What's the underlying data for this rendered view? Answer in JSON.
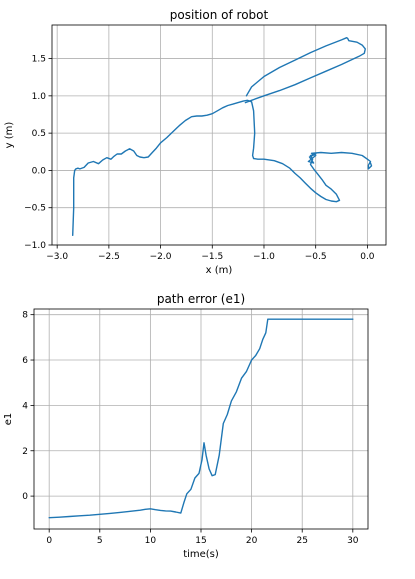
{
  "colors": {
    "series": "#1f77b4",
    "grid": "#b0b0b0",
    "background": "#ffffff"
  },
  "chart_data": [
    {
      "type": "line",
      "title": "position of robot",
      "xlabel": "x (m)",
      "ylabel": "y (m)",
      "xlim": [
        -3.05,
        0.18
      ],
      "ylim": [
        -1.0,
        1.95
      ],
      "xticks": [
        -3.0,
        -2.5,
        -2.0,
        -1.5,
        -1.0,
        -0.5,
        0.0
      ],
      "xtick_labels": [
        "−3.0",
        "−2.5",
        "−2.0",
        "−1.5",
        "−1.0",
        "−0.5",
        "0.0"
      ],
      "yticks": [
        -1.0,
        -0.5,
        0.0,
        0.5,
        1.0,
        1.5
      ],
      "ytick_labels": [
        "−1.0",
        "−0.5",
        "0.0",
        "0.5",
        "1.0",
        "1.5"
      ],
      "grid": true,
      "series": [
        {
          "x": [
            -2.85,
            -2.84,
            -2.84,
            -2.83,
            -2.82,
            -2.8,
            -2.78,
            -2.74,
            -2.7,
            -2.65,
            -2.6,
            -2.56,
            -2.52,
            -2.48,
            -2.45,
            -2.42,
            -2.38,
            -2.34,
            -2.3,
            -2.26,
            -2.23,
            -2.2,
            -2.16,
            -2.12,
            -2.08,
            -2.04,
            -2.0,
            -1.94,
            -1.88,
            -1.82,
            -1.76,
            -1.7,
            -1.65,
            -1.6,
            -1.55,
            -1.5,
            -1.45,
            -1.4,
            -1.35,
            -1.3,
            -1.25,
            -1.2,
            -1.16,
            -1.12,
            -1.1,
            -1.09,
            -1.1,
            -1.11,
            -1.1,
            -1.06,
            -1.0,
            -0.9,
            -0.82,
            -0.75,
            -0.7,
            -0.65,
            -0.6,
            -0.55,
            -0.5,
            -0.45,
            -0.4,
            -0.35,
            -0.3,
            -0.27,
            -0.3,
            -0.35,
            -0.4,
            -0.44,
            -0.48,
            -0.52,
            -0.55,
            -0.53,
            -0.55,
            -0.5,
            -0.56,
            -0.52,
            -0.57,
            -0.5,
            -0.54,
            -0.45,
            -0.35,
            -0.25,
            -0.15,
            -0.05,
            0.0,
            0.03,
            0.01,
            0.01,
            0.04,
            0.03
          ],
          "y": [
            -0.87,
            -0.5,
            -0.1,
            0.0,
            0.02,
            0.03,
            0.02,
            0.04,
            0.1,
            0.12,
            0.09,
            0.14,
            0.17,
            0.15,
            0.19,
            0.22,
            0.22,
            0.26,
            0.29,
            0.26,
            0.2,
            0.18,
            0.17,
            0.18,
            0.24,
            0.3,
            0.37,
            0.44,
            0.52,
            0.6,
            0.67,
            0.72,
            0.73,
            0.73,
            0.74,
            0.76,
            0.8,
            0.84,
            0.87,
            0.89,
            0.91,
            0.93,
            0.94,
            0.92,
            0.8,
            0.5,
            0.3,
            0.2,
            0.16,
            0.15,
            0.15,
            0.13,
            0.09,
            0.03,
            -0.04,
            -0.1,
            -0.17,
            -0.24,
            -0.3,
            -0.35,
            -0.39,
            -0.41,
            -0.42,
            -0.4,
            -0.32,
            -0.25,
            -0.2,
            -0.12,
            -0.05,
            0.02,
            0.08,
            0.15,
            0.2,
            0.22,
            0.18,
            0.1,
            0.12,
            0.2,
            0.23,
            0.24,
            0.23,
            0.24,
            0.23,
            0.2,
            0.15,
            0.12,
            0.07,
            0.02,
            0.06,
            0.1
          ]
        },
        {
          "x": [
            -1.18,
            -1.12,
            -1.0,
            -0.85,
            -0.7,
            -0.55,
            -0.4,
            -0.25,
            -0.16,
            -0.08,
            -0.03,
            -0.02,
            -0.05,
            -0.1,
            -0.18,
            -0.19,
            -0.2,
            -0.25,
            -0.4,
            -0.55,
            -0.7,
            -0.85,
            -1.0,
            -1.12,
            -1.17
          ],
          "y": [
            0.91,
            0.94,
            1.0,
            1.07,
            1.15,
            1.24,
            1.33,
            1.42,
            1.48,
            1.53,
            1.57,
            1.63,
            1.68,
            1.72,
            1.74,
            1.77,
            1.78,
            1.75,
            1.67,
            1.58,
            1.48,
            1.38,
            1.26,
            1.12,
            1.0
          ]
        }
      ]
    },
    {
      "type": "line",
      "title": "path error (e1)",
      "xlabel": "time(s)",
      "ylabel": "e1",
      "xlim": [
        -1.5,
        31.5
      ],
      "ylim": [
        -1.45,
        8.25
      ],
      "xticks": [
        0,
        5,
        10,
        15,
        20,
        25,
        30
      ],
      "xtick_labels": [
        "0",
        "5",
        "10",
        "15",
        "20",
        "25",
        "30"
      ],
      "yticks": [
        0,
        2,
        4,
        6,
        8
      ],
      "ytick_labels": [
        "0",
        "2",
        "4",
        "6",
        "8"
      ],
      "grid": true,
      "series": [
        {
          "x": [
            0,
            1,
            2,
            3,
            4,
            5,
            6,
            7,
            8,
            9,
            9.5,
            10,
            10.5,
            11,
            11.5,
            12,
            12.5,
            13,
            13.3,
            13.6,
            14,
            14.4,
            14.8,
            15.1,
            15.3,
            15.5,
            15.8,
            16.1,
            16.4,
            16.8,
            17.2,
            17.6,
            18,
            18.5,
            19,
            19.5,
            20,
            20.4,
            20.8,
            21.1,
            21.4,
            21.6,
            22,
            25,
            30
          ],
          "y": [
            -0.95,
            -0.93,
            -0.9,
            -0.87,
            -0.84,
            -0.8,
            -0.76,
            -0.72,
            -0.67,
            -0.62,
            -0.58,
            -0.56,
            -0.6,
            -0.63,
            -0.65,
            -0.66,
            -0.7,
            -0.75,
            -0.3,
            0.1,
            0.3,
            0.8,
            1.0,
            1.6,
            2.35,
            1.8,
            1.2,
            0.9,
            0.95,
            1.8,
            3.2,
            3.6,
            4.2,
            4.6,
            5.2,
            5.5,
            6.0,
            6.2,
            6.5,
            6.9,
            7.2,
            7.8,
            7.8,
            7.8,
            7.8
          ]
        }
      ]
    }
  ]
}
